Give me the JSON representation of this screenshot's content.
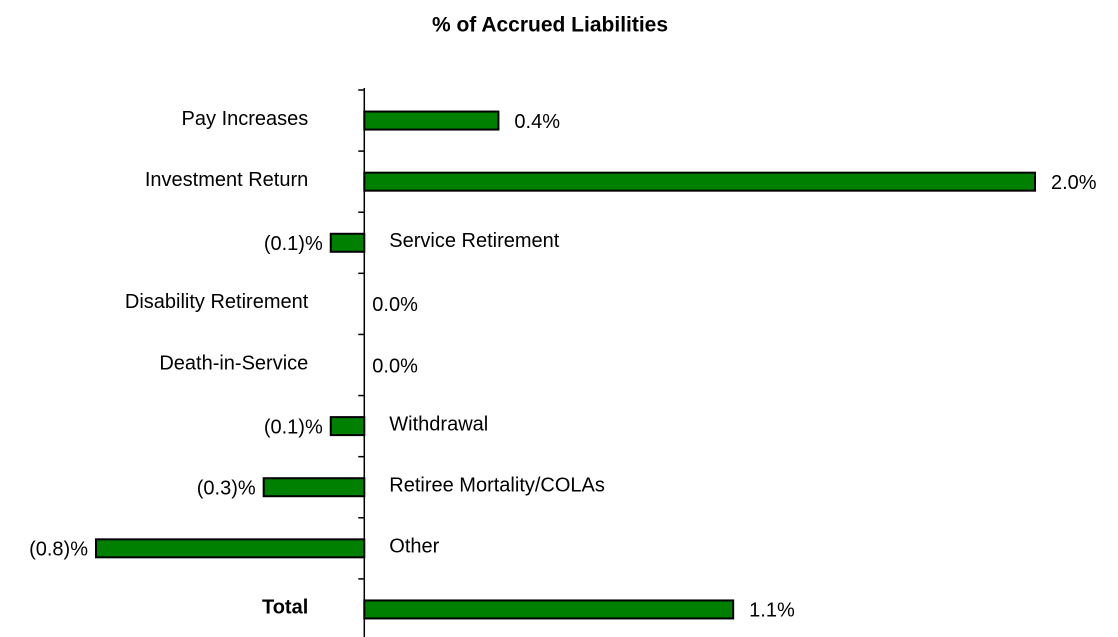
{
  "chart_data": {
    "type": "bar",
    "orientation": "horizontal",
    "title": "% of Accrued Liabilities",
    "categories": [
      "Pay Increases",
      "Investment Return",
      "Service Retirement",
      "Disability Retirement",
      "Death-in-Service",
      "Withdrawal",
      "Retiree Mortality/COLAs",
      "Other",
      "Total"
    ],
    "values": [
      0.4,
      2.0,
      -0.1,
      0.0,
      0.0,
      -0.1,
      -0.3,
      -0.8,
      1.1
    ],
    "value_labels": [
      "0.4%",
      "2.0%",
      "(0.1)%",
      "0.0%",
      "0.0%",
      "(0.1)%",
      "(0.3)%",
      "(0.8)%",
      "1.1%"
    ],
    "color": "#008000",
    "xlim": [
      -0.8,
      2.0
    ]
  }
}
